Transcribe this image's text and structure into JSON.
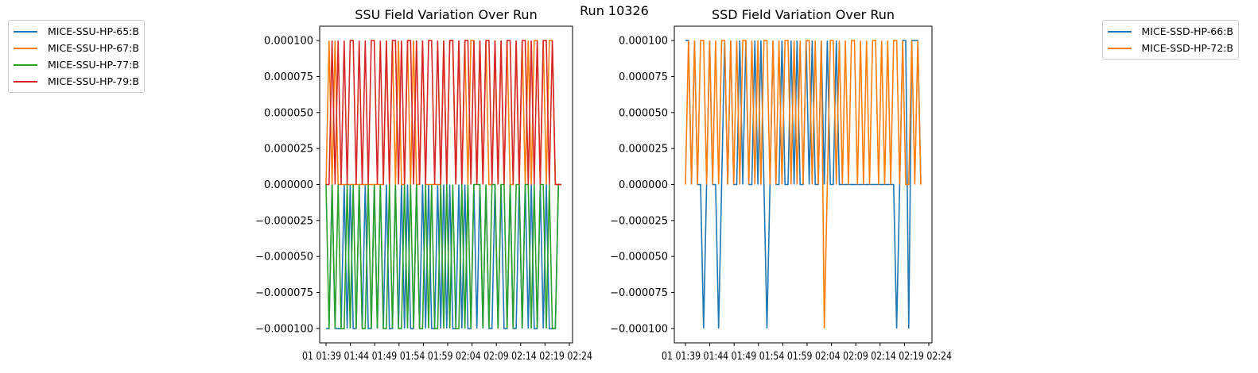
{
  "figure": {
    "suptitle": "Run 10326"
  },
  "chart_data": [
    {
      "type": "line",
      "title": "SSU Field Variation Over Run",
      "xlabel": "",
      "ylabel": "",
      "ylim": [
        -0.00011,
        0.00011
      ],
      "yticks": [
        "0.000100",
        "0.000075",
        "0.000050",
        "0.000025",
        "0.000000",
        "−0.000025",
        "−0.000050",
        "−0.000075",
        "−0.000100"
      ],
      "xtick_text": "01 01:39 01:44 01:49 01:54 01:59 02:04 02:09 02:14 02:19 02:24",
      "legend_position": "outside-left",
      "series": [
        {
          "name": "MICE-SSU-HP-65:B",
          "color": "#1f77b4",
          "values": [
            -0.0001,
            -0.0001,
            0,
            -0.0001,
            -0.0001,
            -0.0001,
            0,
            -0.0001,
            0,
            -0.0001,
            -0.0001,
            0,
            -0.0001,
            0,
            -0.0001,
            -0.0001,
            0,
            -0.0001,
            0,
            -0.0001,
            0,
            -0.0001,
            -0.0001,
            0,
            -0.0001,
            0,
            -0.0001,
            0,
            -0.0001,
            -0.0001,
            0,
            -0.0001,
            0,
            -0.0001,
            0,
            -0.0001,
            -0.0001,
            0,
            -0.0001,
            0,
            -0.0001,
            0,
            -0.0001,
            -0.0001,
            0,
            -0.0001,
            0,
            -0.0001,
            -0.0001,
            0,
            -0.0001,
            0,
            -0.0001,
            0,
            -0.0001,
            -0.0001,
            0,
            -0.0001,
            0,
            -0.0001,
            -0.0001,
            0,
            -0.0001,
            -0.0001,
            0,
            -0.0001,
            0,
            -0.0001,
            0,
            -0.0001,
            -0.0001,
            0,
            -0.0001,
            0,
            -0.0001,
            -0.0001,
            -0.0001,
            0,
            0
          ]
        },
        {
          "name": "MICE-SSU-HP-67:B",
          "color": "#ff7f0e",
          "values": [
            0,
            0.0001,
            0,
            0.0001,
            0,
            0,
            0,
            0,
            0,
            0,
            0,
            0,
            0,
            0,
            0,
            0,
            0,
            0,
            0,
            0,
            0.0001,
            0,
            0.0001,
            0,
            0.0001,
            0,
            0,
            0.0001,
            0,
            0.0001,
            0,
            0,
            0.0001,
            0,
            0,
            0,
            0,
            0,
            0,
            0.0001,
            0,
            0.0001,
            0.0001,
            0,
            0.0001,
            0,
            0.0001,
            0,
            0.0001,
            0.0001,
            0,
            0.0001,
            0,
            0.0001,
            0,
            0,
            0.0001,
            0,
            0.0001,
            0,
            0.0001,
            0,
            0,
            0.0001,
            0,
            0.0001,
            0,
            0.0001,
            0,
            0.0001,
            0.0001,
            0,
            0.0001,
            0,
            0.0001,
            0.0001,
            0,
            0,
            0
          ]
        },
        {
          "name": "MICE-SSU-HP-77:B",
          "color": "#2ca02c",
          "values": [
            0,
            -0.0001,
            0,
            -0.0001,
            0,
            -0.0001,
            -0.0001,
            0,
            -0.0001,
            0,
            -0.0001,
            0,
            -0.0001,
            -0.0001,
            0,
            -0.0001,
            0,
            -0.0001,
            0,
            -0.0001,
            -0.0001,
            0,
            -0.0001,
            0,
            -0.0001,
            -0.0001,
            0,
            -0.0001,
            0,
            -0.0001,
            0,
            -0.0001,
            -0.0001,
            0,
            -0.0001,
            0,
            -0.0001,
            -0.0001,
            0,
            -0.0001,
            0,
            -0.0001,
            0,
            -0.0001,
            -0.0001,
            0,
            -0.0001,
            0,
            -0.0001,
            0,
            0,
            0,
            -0.0001,
            0,
            -0.0001,
            0,
            0,
            -0.0001,
            0,
            0,
            -0.0001,
            0,
            -0.0001,
            0,
            0,
            -0.0001,
            0,
            0,
            -0.0001,
            0,
            -0.0001,
            0,
            0,
            -0.0001,
            0,
            -0.0001,
            -0.0001,
            0,
            0
          ]
        },
        {
          "name": "MICE-SSU-HP-79:B",
          "color": "#d62728",
          "values": [
            0,
            0,
            0.0001,
            0,
            0.0001,
            0,
            0.0001,
            0,
            0.0001,
            0.0001,
            0,
            0.0001,
            0,
            0.0001,
            0,
            0.0001,
            0.0001,
            0,
            0.0001,
            0,
            0.0001,
            0,
            0.0001,
            0.0001,
            0,
            0.0001,
            0,
            0.0001,
            0.0001,
            0,
            0.0001,
            0,
            0.0001,
            0,
            0.0001,
            0.0001,
            0,
            0.0001,
            0,
            0.0001,
            0,
            0.0001,
            0.0001,
            0,
            0.0001,
            0,
            0.0001,
            0.0001,
            0,
            0.0001,
            0,
            0.0001,
            0,
            0.0001,
            0.0001,
            0,
            0.0001,
            0,
            0.0001,
            0,
            0.0001,
            0.0001,
            0,
            0.0001,
            0,
            0.0001,
            0.0001,
            0,
            0.0001,
            0,
            0.0001,
            0,
            0.0001,
            0.0001,
            0,
            0.0001,
            0,
            0,
            0
          ]
        }
      ]
    },
    {
      "type": "line",
      "title": "SSD Field Variation Over Run",
      "xlabel": "",
      "ylabel": "",
      "ylim": [
        -0.00011,
        0.00011
      ],
      "yticks": [
        "0.000100",
        "0.000075",
        "0.000050",
        "0.000025",
        "0.000000",
        "−0.000025",
        "−0.000050",
        "−0.000075",
        "−0.000100"
      ],
      "xtick_text": "01 01:39 01:44 01:49 01:54 01:59 02:04 02:09 02:14 02:19 02:24",
      "legend_position": "outside-right",
      "series": [
        {
          "name": "MICE-SSD-HP-66:B",
          "color": "#1f77b4",
          "values": [
            0.0001,
            0.0001,
            0,
            0.0001,
            0,
            0,
            -0.0001,
            0,
            0.0001,
            0,
            0,
            -0.0001,
            0,
            0.0001,
            0,
            0.0001,
            0,
            0,
            0.0001,
            0,
            0.0001,
            0,
            0,
            0.0001,
            0,
            0.0001,
            0,
            -0.0001,
            0,
            0.0001,
            0,
            0,
            0.0001,
            0,
            0,
            0.0001,
            0,
            0.0001,
            0,
            0,
            0.0001,
            0,
            0.0001,
            0,
            0,
            0.0001,
            0,
            0.0001,
            0,
            0,
            0.0001,
            0,
            0,
            0,
            0,
            0,
            0,
            0,
            0,
            0,
            0,
            0,
            0,
            0,
            0,
            0,
            0,
            0,
            0,
            0,
            -0.0001,
            0,
            0.0001,
            0.0001,
            -0.0001,
            0.0001,
            0.0001,
            0.0001,
            0
          ]
        },
        {
          "name": "MICE-SSD-HP-72:B",
          "color": "#ff7f0e",
          "values": [
            0,
            0.0001,
            0,
            0.0001,
            0,
            0.0001,
            0.0001,
            0,
            0.0001,
            0,
            0.0001,
            0,
            0.0001,
            0.0001,
            0,
            0.0001,
            0,
            0.0001,
            0,
            0.0001,
            0.0001,
            0,
            0.0001,
            0,
            0.0001,
            0,
            0.0001,
            0.0001,
            0,
            0.0001,
            0,
            0.0001,
            0,
            0.0001,
            0.0001,
            0,
            0.0001,
            0,
            0.0001,
            0,
            0.0001,
            0.0001,
            0,
            0.0001,
            0,
            0.0001,
            -0.0001,
            0,
            0.0001,
            0.0001,
            0,
            0.0001,
            0,
            0.0001,
            0,
            0.0001,
            0.0001,
            0,
            0.0001,
            0,
            0.0001,
            0,
            0.0001,
            0.0001,
            0,
            0.0001,
            0,
            0.0001,
            0,
            0.0001,
            0.0001,
            0,
            0.0001,
            0,
            0,
            0.0001,
            0,
            0.0001,
            0
          ]
        }
      ]
    }
  ]
}
